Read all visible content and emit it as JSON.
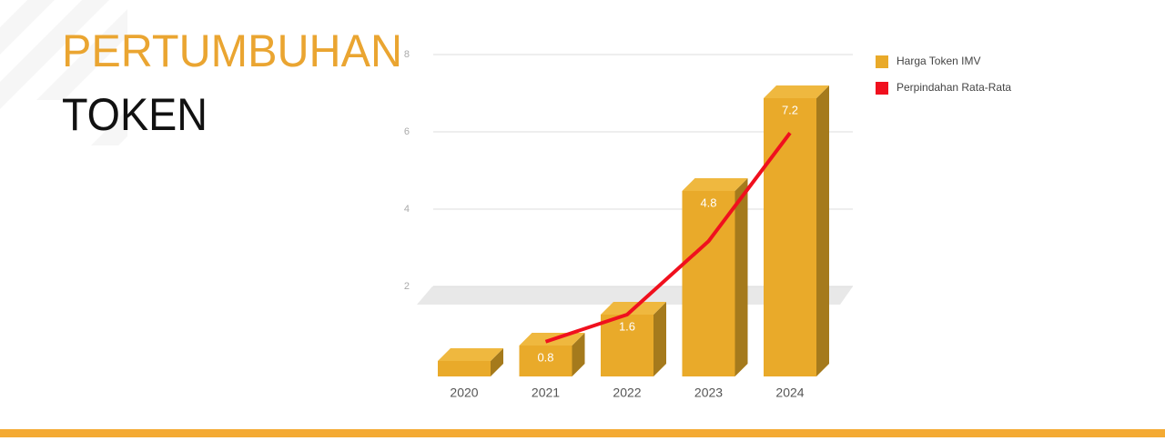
{
  "chart_data": {
    "type": "bar",
    "title": "PERTUMBUHAN",
    "subtitle": "TOKEN",
    "categories": [
      "2020",
      "2021",
      "2022",
      "2023",
      "2024"
    ],
    "series": [
      {
        "name": "Harga Token IMV",
        "type": "bar",
        "color": "#e9aa2a",
        "values": [
          0.4,
          0.8,
          1.6,
          4.8,
          7.2
        ],
        "value_labels": [
          null,
          "0.8",
          "1.6",
          "4.8",
          "7.2"
        ]
      },
      {
        "name": "Perpindahan Rata-Rata",
        "type": "line",
        "color": "#f0101e",
        "values": [
          null,
          0.9,
          1.6,
          3.5,
          6.3
        ]
      }
    ],
    "ylim": [
      0,
      8
    ],
    "yticks": [
      2,
      4,
      6,
      8
    ],
    "grid": true,
    "legend": "right"
  }
}
